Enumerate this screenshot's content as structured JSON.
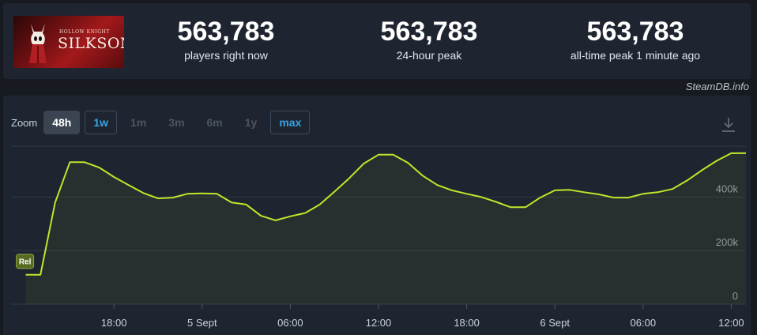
{
  "game": {
    "name": "Hollow Knight: Silksong",
    "logo_subtitle": "HOLLOW KNIGHT",
    "logo_title": "SILKSONG"
  },
  "stats": [
    {
      "value": "563,783",
      "label": "players right now"
    },
    {
      "value": "563,783",
      "label": "24-hour peak"
    },
    {
      "value": "563,783",
      "label": "all-time peak 1 minute ago"
    }
  ],
  "attribution": "SteamDB.info",
  "zoom": {
    "label": "Zoom",
    "options": [
      {
        "label": "48h",
        "state": "selected"
      },
      {
        "label": "1w",
        "state": "link"
      },
      {
        "label": "1m",
        "state": "disabled"
      },
      {
        "label": "3m",
        "state": "disabled"
      },
      {
        "label": "6m",
        "state": "disabled"
      },
      {
        "label": "1y",
        "state": "disabled"
      },
      {
        "label": "max",
        "state": "link"
      }
    ]
  },
  "icons": {
    "download": "download-icon"
  },
  "colors": {
    "line": "#c1e52a",
    "accent": "#36a3e6"
  },
  "chart_data": {
    "type": "line",
    "x_unit": "hours",
    "x_tick_labels": [
      "18:00",
      "5 Sept",
      "06:00",
      "12:00",
      "18:00",
      "6 Sept",
      "06:00",
      "12:00"
    ],
    "x_tick_positions": [
      18,
      24,
      30,
      36,
      42,
      48,
      54,
      60
    ],
    "xlim": [
      11,
      61
    ],
    "y_tick_labels": [
      "0",
      "200k",
      "400k"
    ],
    "y_tick_values": [
      0,
      200000,
      400000
    ],
    "ylim": [
      0,
      590000
    ],
    "marker": {
      "label": "Rel",
      "x": 12,
      "y": 110000
    },
    "x": [
      12,
      13,
      14,
      15,
      16,
      17,
      18,
      19,
      20,
      21,
      22,
      23,
      24,
      25,
      26,
      27,
      28,
      29,
      30,
      31,
      32,
      33,
      34,
      35,
      36,
      37,
      38,
      39,
      40,
      41,
      42,
      43,
      44,
      45,
      46,
      47,
      48,
      49,
      50,
      51,
      52,
      53,
      54,
      55,
      56,
      57,
      58,
      59,
      60,
      61
    ],
    "values": [
      110000,
      110000,
      380000,
      530000,
      530000,
      510000,
      475000,
      445000,
      415000,
      395000,
      398000,
      412000,
      414000,
      412000,
      380000,
      372000,
      330000,
      313000,
      328000,
      340000,
      372000,
      420000,
      470000,
      525000,
      558000,
      558000,
      528000,
      480000,
      445000,
      425000,
      412000,
      400000,
      382000,
      362000,
      362000,
      398000,
      425000,
      427000,
      418000,
      410000,
      398000,
      398000,
      412000,
      418000,
      430000,
      462000,
      500000,
      535000,
      563783,
      563783
    ]
  }
}
